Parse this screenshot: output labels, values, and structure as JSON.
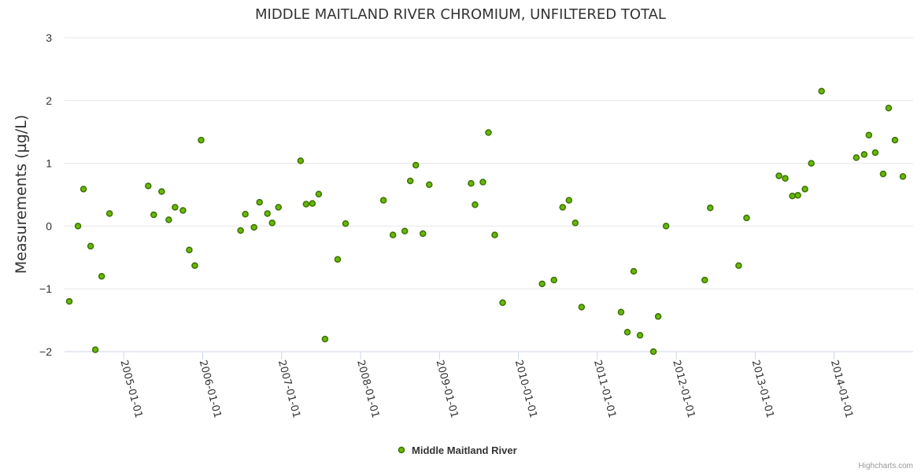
{
  "chart_data": {
    "type": "scatter",
    "title": "MIDDLE MAITLAND RIVER CHROMIUM, UNFILTERED TOTAL",
    "xlabel": "",
    "ylabel": "Measurements (µg/L)",
    "ylim": [
      -2,
      3
    ],
    "yticks": [
      3,
      2,
      1,
      0,
      -1,
      -2
    ],
    "ytick_labels": [
      "3",
      "2",
      "1",
      "0",
      "−1",
      "−2"
    ],
    "xlim": [
      2004.25,
      2015.0
    ],
    "xticks": [
      {
        "value": 2005,
        "label": "2005-01-01"
      },
      {
        "value": 2006,
        "label": "2006-01-01"
      },
      {
        "value": 2007,
        "label": "2007-01-01"
      },
      {
        "value": 2008,
        "label": "2008-01-01"
      },
      {
        "value": 2009,
        "label": "2009-01-01"
      },
      {
        "value": 2010,
        "label": "2010-01-01"
      },
      {
        "value": 2011,
        "label": "2011-01-01"
      },
      {
        "value": 2012,
        "label": "2012-01-01"
      },
      {
        "value": 2013,
        "label": "2013-01-01"
      },
      {
        "value": 2014,
        "label": "2014-01-01"
      }
    ],
    "grid": true,
    "legend_position": "bottom-center",
    "series": [
      {
        "name": "Middle Maitland River",
        "color": "#66bb00",
        "points": [
          [
            2004.31,
            -1.2
          ],
          [
            2004.42,
            0.0
          ],
          [
            2004.49,
            0.59
          ],
          [
            2004.58,
            -0.32
          ],
          [
            2004.64,
            -1.97
          ],
          [
            2004.72,
            -0.8
          ],
          [
            2004.82,
            0.2
          ],
          [
            2005.31,
            0.64
          ],
          [
            2005.38,
            0.18
          ],
          [
            2005.48,
            0.55
          ],
          [
            2005.57,
            0.1
          ],
          [
            2005.65,
            0.3
          ],
          [
            2005.75,
            0.25
          ],
          [
            2005.83,
            -0.38
          ],
          [
            2005.9,
            -0.63
          ],
          [
            2005.98,
            1.37
          ],
          [
            2006.48,
            -0.07
          ],
          [
            2006.54,
            0.19
          ],
          [
            2006.65,
            -0.02
          ],
          [
            2006.72,
            0.38
          ],
          [
            2006.82,
            0.2
          ],
          [
            2006.88,
            0.05
          ],
          [
            2006.96,
            0.3
          ],
          [
            2007.24,
            1.04
          ],
          [
            2007.31,
            0.35
          ],
          [
            2007.39,
            0.36
          ],
          [
            2007.47,
            0.51
          ],
          [
            2007.55,
            -1.8
          ],
          [
            2007.71,
            -0.53
          ],
          [
            2007.81,
            0.04
          ],
          [
            2008.29,
            0.41
          ],
          [
            2008.41,
            -0.14
          ],
          [
            2008.56,
            -0.08
          ],
          [
            2008.63,
            0.72
          ],
          [
            2008.7,
            0.97
          ],
          [
            2008.79,
            -0.12
          ],
          [
            2008.87,
            0.66
          ],
          [
            2009.4,
            0.68
          ],
          [
            2009.45,
            0.34
          ],
          [
            2009.55,
            0.7
          ],
          [
            2009.62,
            1.49
          ],
          [
            2009.7,
            -0.14
          ],
          [
            2009.8,
            -1.22
          ],
          [
            2010.3,
            -0.92
          ],
          [
            2010.45,
            -0.86
          ],
          [
            2010.56,
            0.3
          ],
          [
            2010.64,
            0.41
          ],
          [
            2010.72,
            0.05
          ],
          [
            2010.8,
            -1.29
          ],
          [
            2011.3,
            -1.37
          ],
          [
            2011.38,
            -1.69
          ],
          [
            2011.46,
            -0.72
          ],
          [
            2011.54,
            -1.74
          ],
          [
            2011.71,
            -2.0
          ],
          [
            2011.77,
            -1.44
          ],
          [
            2011.87,
            0.0
          ],
          [
            2012.36,
            -0.86
          ],
          [
            2012.43,
            0.29
          ],
          [
            2012.79,
            -0.63
          ],
          [
            2012.89,
            0.13
          ],
          [
            2013.3,
            0.8
          ],
          [
            2013.38,
            0.76
          ],
          [
            2013.47,
            0.48
          ],
          [
            2013.54,
            0.49
          ],
          [
            2013.63,
            0.59
          ],
          [
            2013.71,
            1.0
          ],
          [
            2013.84,
            2.15
          ],
          [
            2014.28,
            1.09
          ],
          [
            2014.38,
            1.14
          ],
          [
            2014.44,
            1.45
          ],
          [
            2014.52,
            1.17
          ],
          [
            2014.62,
            0.83
          ],
          [
            2014.69,
            1.88
          ],
          [
            2014.77,
            1.37
          ],
          [
            2014.87,
            0.79
          ]
        ]
      }
    ]
  },
  "credits": "Highcharts.com"
}
